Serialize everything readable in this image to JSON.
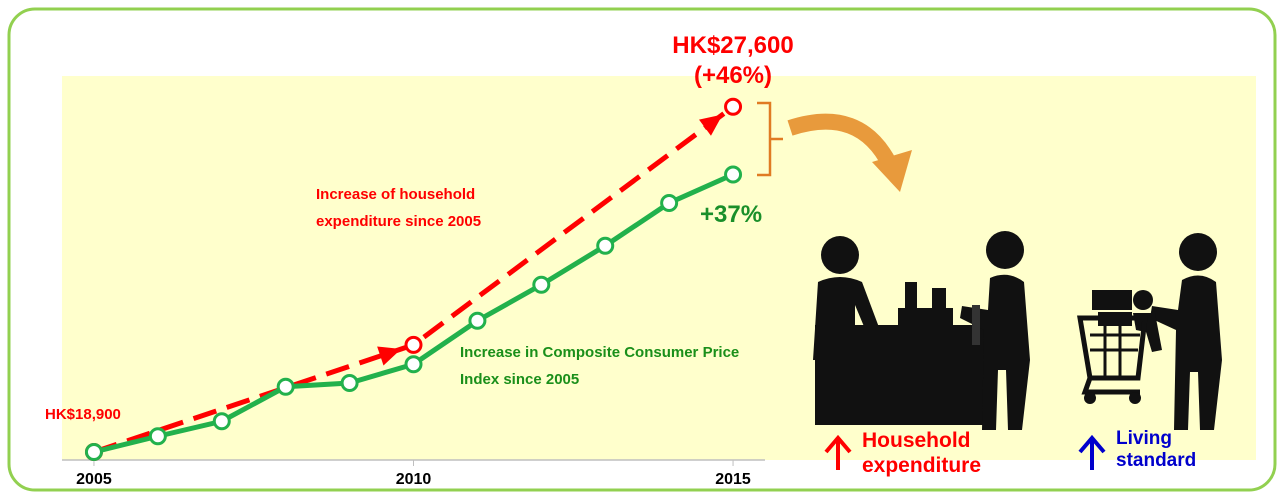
{
  "chart_data": {
    "type": "line",
    "x": [
      2005,
      2006,
      2007,
      2008,
      2009,
      2010,
      2011,
      2012,
      2013,
      2014,
      2015
    ],
    "xlim": [
      2004.5,
      2015.5
    ],
    "xticks": [
      2005,
      2010,
      2015
    ],
    "ylim": [
      0,
      50
    ],
    "y2lim": [
      18900,
      28350
    ],
    "series": [
      {
        "name": "Increase in Composite Consumer Price Index since 2005",
        "color": "#22b14c",
        "values": [
          0,
          2.1,
          4.1,
          8.7,
          9.2,
          11.7,
          17.5,
          22.3,
          27.5,
          33.2,
          37
        ],
        "value_labels": [
          null,
          null,
          null,
          null,
          null,
          null,
          null,
          null,
          null,
          null,
          "+37%"
        ]
      },
      {
        "name": "Increase of household expenditure since 2005",
        "color": "#ff0000",
        "axis": "y2",
        "x": [
          2005,
          2010,
          2015
        ],
        "values": [
          18900,
          21600,
          27600
        ],
        "value_labels": [
          "HK$18,900",
          null,
          "HK$27,600"
        ]
      }
    ],
    "annotations": [
      "(+46%)",
      "Household expenditure",
      "Living standard"
    ]
  }
}
